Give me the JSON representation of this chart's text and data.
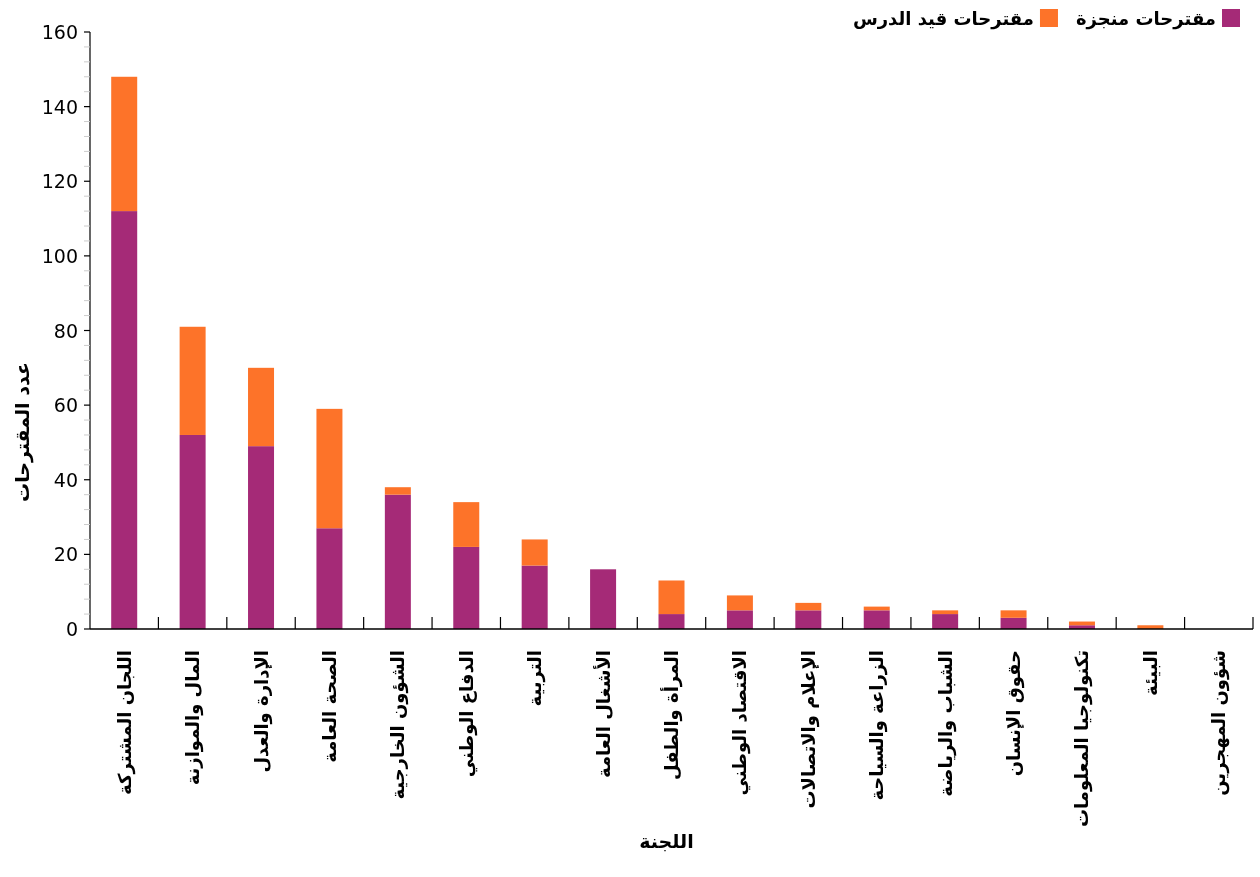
{
  "chart_data": {
    "type": "bar",
    "stacked": true,
    "xlabel": "اللجنة",
    "ylabel": "عدد المقترحات",
    "categories": [
      "اللجان المشتركة",
      "المال والموازنة",
      "الإدارة والعدل",
      "الصحة العامة",
      "الشؤون الخارجية",
      "الدفاع الوطني",
      "التربية",
      "الأشغال العامة",
      "المرأة والطفل",
      "الاقتصاد الوطني",
      "الإعلام والاتصالات",
      "الزراعة والسياحة",
      "الشباب والرياضة",
      "حقوق الإنسان",
      "تكنولوجيا المعلومات",
      "البيئة",
      "شؤون المهجرين"
    ],
    "series": [
      {
        "name": "مقترحات منجزة",
        "color": "#a52a77",
        "values": [
          112,
          52,
          49,
          27,
          36,
          22,
          17,
          16,
          4,
          5,
          5,
          5,
          4,
          3,
          1,
          0,
          0
        ]
      },
      {
        "name": "مقترحات قيد الدرس",
        "color": "#fd7329",
        "values": [
          36,
          29,
          21,
          32,
          2,
          12,
          7,
          0,
          9,
          4,
          2,
          1,
          1,
          2,
          1,
          1,
          0
        ]
      }
    ],
    "ylim": [
      0,
      160
    ],
    "yticks": [
      0,
      {
        "value": 4,
        "label": null
      },
      {
        "value": 8,
        "label": null
      },
      {
        "value": 12,
        "label": null
      },
      {
        "value": 16,
        "label": null
      },
      20,
      {
        "value": 24,
        "label": null
      },
      {
        "value": 28,
        "label": null
      },
      {
        "value": 32,
        "label": null
      },
      {
        "value": 36,
        "label": null
      },
      40,
      {
        "value": 44,
        "label": null
      },
      {
        "value": 48,
        "label": null
      },
      {
        "value": 52,
        "label": null
      },
      {
        "value": 56,
        "label": null
      },
      60,
      {
        "value": 64,
        "label": null
      },
      {
        "value": 68,
        "label": null
      },
      {
        "value": 72,
        "label": null
      },
      {
        "value": 76,
        "label": null
      },
      80,
      {
        "value": 84,
        "label": null
      },
      {
        "value": 88,
        "label": null
      },
      {
        "value": 92,
        "label": null
      },
      {
        "value": 96,
        "label": null
      },
      100,
      {
        "value": 104,
        "label": null
      },
      {
        "value": 108,
        "label": null
      },
      {
        "value": 112,
        "label": null
      },
      {
        "value": 116,
        "label": null
      },
      120,
      {
        "value": 124,
        "label": null
      },
      {
        "value": 128,
        "label": null
      },
      {
        "value": 132,
        "label": null
      },
      {
        "value": 136,
        "label": null
      },
      140,
      {
        "value": 144,
        "label": null
      },
      {
        "value": 148,
        "label": null
      },
      {
        "value": 152,
        "label": null
      },
      {
        "value": 156,
        "label": null
      },
      160
    ],
    "legend": "top right",
    "grid": false
  }
}
